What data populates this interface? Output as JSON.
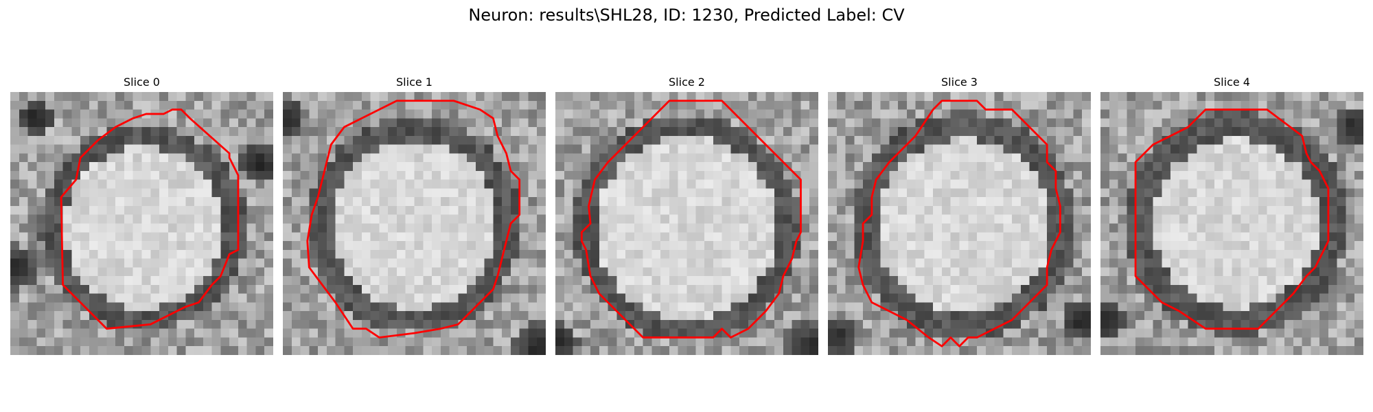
{
  "figure": {
    "title": "Neuron: results\\SHL28, ID: 1230, Predicted Label: CV",
    "contour_color": "#ff0000"
  },
  "panels": [
    {
      "title": "Slice 0"
    },
    {
      "title": "Slice 1"
    },
    {
      "title": "Slice 2"
    },
    {
      "title": "Slice 3"
    },
    {
      "title": "Slice 4"
    }
  ]
}
